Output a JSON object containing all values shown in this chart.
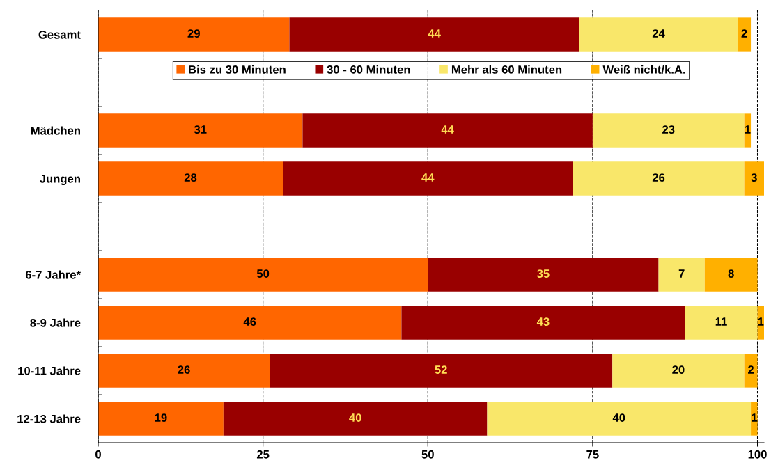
{
  "chart_data": {
    "type": "bar",
    "orientation": "horizontal",
    "stacked": true,
    "categories": [
      "Gesamt",
      null,
      "Mädchen",
      "Jungen",
      null,
      "6-7 Jahre*",
      "8-9 Jahre",
      "10-11 Jahre",
      "12-13 Jahre"
    ],
    "series": [
      {
        "name": "Bis zu 30 Minuten",
        "color": "#ff6600",
        "values": [
          29,
          null,
          31,
          28,
          null,
          50,
          46,
          26,
          19
        ]
      },
      {
        "name": "30 - 60 Minuten",
        "color": "#990000",
        "values": [
          44,
          null,
          44,
          44,
          null,
          35,
          43,
          52,
          40
        ]
      },
      {
        "name": "Mehr als 60 Minuten",
        "color": "#f9e76a",
        "values": [
          24,
          null,
          23,
          26,
          null,
          7,
          11,
          20,
          40
        ]
      },
      {
        "name": "Weiß nicht/k.A.",
        "color": "#ffb000",
        "values": [
          2,
          null,
          1,
          3,
          null,
          8,
          1,
          2,
          1
        ]
      }
    ],
    "xlim": [
      0,
      101
    ],
    "xticks": [
      0,
      25,
      50,
      75,
      100
    ],
    "grid": "x",
    "line_style": "dashed",
    "data_labels": true,
    "legend": "top"
  }
}
